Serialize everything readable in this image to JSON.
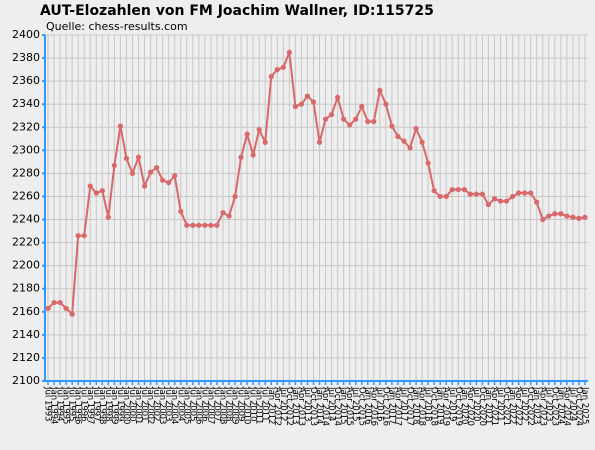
{
  "chart_data": {
    "type": "line",
    "title": "AUT-Elozahlen von FM Joachim Wallner, ID:115725",
    "subtitle": "Quelle: chess-results.com",
    "categories": [
      "Jul 1993",
      "Jan 1994",
      "Jul 1994",
      "Jan 1995",
      "Jul 1995",
      "Jan 1996",
      "Jul 1996",
      "Jan 1997",
      "Jul 1997",
      "Jan 1998",
      "Jul 1998",
      "Jan 1999",
      "Jul 1999",
      "Jan 2000",
      "Jul 2000",
      "Jan 2001",
      "Jul 2001",
      "Jan 2002",
      "Jul 2002",
      "Jan 2003",
      "Jul 2003",
      "Jan 2004",
      "Jul 2004",
      "Jan 2005",
      "Jul 2005",
      "Jan 2006",
      "Jul 2006",
      "Jan 2007",
      "Jul 2007",
      "Jan 2008",
      "Jul 2008",
      "Jan 2009",
      "Jul 2009",
      "Jan 2010",
      "Jul 2010",
      "Jan 2011",
      "Jul 2011",
      "Jan 2012",
      "Apr 2012",
      "Jul 2012",
      "Oct 2012",
      "Jan 2013",
      "Apr 2013",
      "Jul 2013",
      "Oct 2013",
      "Jan 2014",
      "Apr 2014",
      "Jul 2014",
      "Oct 2014",
      "Jan 2015",
      "Apr 2015",
      "Jul 2015",
      "Oct 2015",
      "Jan 2016",
      "Apr 2016",
      "Jul 2016",
      "Oct 2016",
      "Jan 2017",
      "Apr 2017",
      "Jul 2017",
      "Oct 2017",
      "Jan 2018",
      "Apr 2018",
      "Jul 2018",
      "Oct 2018",
      "Jan 2019",
      "Apr 2019",
      "Jul 2019",
      "Oct 2019",
      "Jan 2020",
      "Apr 2020",
      "Jul 2020",
      "Oct 2020",
      "Jan 2021",
      "Apr 2021",
      "Jul 2021",
      "Oct 2021",
      "Jan 2022",
      "Apr 2022",
      "Jul 2022",
      "Oct 2022",
      "Jan 2023",
      "Apr 2023",
      "Jul 2023",
      "Oct 2023",
      "Jan 2024",
      "Apr 2024",
      "Jul 2024",
      "Oct 2024",
      "Jan 2025"
    ],
    "values": [
      2163,
      2168,
      2168,
      2163,
      2158,
      2226,
      2226,
      2269,
      2263,
      2265,
      2242,
      2287,
      2321,
      2293,
      2280,
      2294,
      2269,
      2281,
      2285,
      2274,
      2272,
      2278,
      2247,
      2235,
      2235,
      2235,
      2235,
      2235,
      2235,
      2246,
      2243,
      2260,
      2294,
      2314,
      2296,
      2318,
      2307,
      2364,
      2370,
      2372,
      2385,
      2338,
      2340,
      2347,
      2342,
      2307,
      2327,
      2331,
      2346,
      2327,
      2322,
      2327,
      2338,
      2325,
      2325,
      2352,
      2340,
      2321,
      2312,
      2308,
      2302,
      2319,
      2307,
      2289,
      2265,
      2260,
      2260,
      2266,
      2266,
      2266,
      2262,
      2262,
      2262,
      2253,
      2258,
      2256,
      2256,
      2260,
      2263,
      2263,
      2263,
      2255,
      2240,
      2243,
      2245,
      2245,
      2243,
      2242,
      2241,
      2242
    ],
    "color": "#d9686a",
    "ylim": [
      2100,
      2400
    ],
    "yticks": [
      2100,
      2120,
      2140,
      2160,
      2180,
      2200,
      2220,
      2240,
      2260,
      2280,
      2300,
      2320,
      2340,
      2360,
      2380,
      2400
    ],
    "grid": true
  }
}
